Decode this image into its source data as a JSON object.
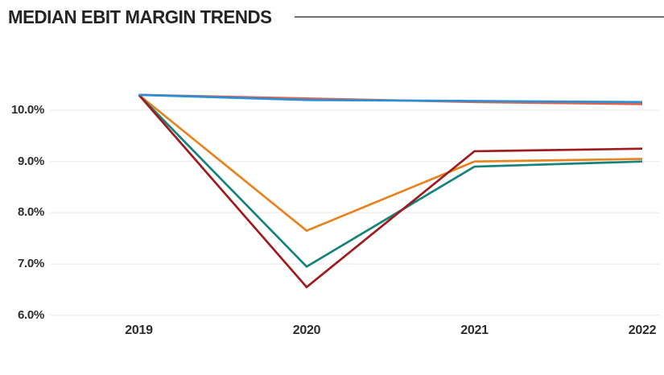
{
  "header": {
    "title": "MEDIAN EBIT MARGIN TRENDS"
  },
  "colors": {
    "background": "#ffffff",
    "title_text": "#262324",
    "title_rule": "#6e6e6e",
    "axis_text": "#2e2c2b",
    "gridline": "#f1efec"
  },
  "chart_data": {
    "type": "line",
    "title": "MEDIAN EBIT MARGIN TRENDS",
    "xlabel": "",
    "ylabel": "",
    "categories": [
      "2019",
      "2020",
      "2021",
      "2022"
    ],
    "series": [
      {
        "name": "orange-line",
        "color": "#E8821E",
        "values": [
          10.3,
          7.65,
          9.0,
          9.05
        ]
      },
      {
        "name": "teal-line",
        "color": "#14837B",
        "values": [
          10.3,
          6.95,
          8.9,
          9.0
        ]
      },
      {
        "name": "dark-red-line",
        "color": "#9E1B1E",
        "values": [
          10.3,
          6.55,
          9.2,
          9.25
        ]
      },
      {
        "name": "coral-line",
        "color": "#E2604B",
        "values": [
          10.3,
          10.23,
          10.16,
          10.12
        ]
      },
      {
        "name": "blue-line",
        "color": "#2A90D5",
        "values": [
          10.3,
          10.2,
          10.18,
          10.16
        ]
      }
    ],
    "y_ticks": [
      "10.0%",
      "9.0%",
      "8.0%",
      "7.0%",
      "6.0%"
    ],
    "y_tick_values": [
      10.0,
      9.0,
      8.0,
      7.0,
      6.0
    ],
    "ylim": [
      5.85,
      10.55
    ],
    "grid": "faint-horizontal",
    "legend": "none"
  }
}
